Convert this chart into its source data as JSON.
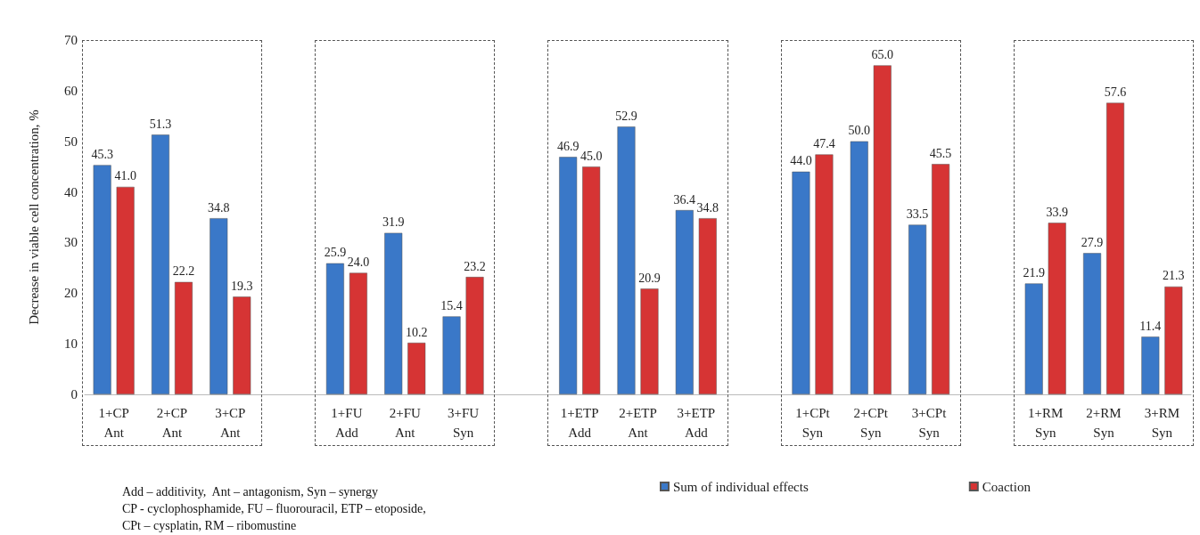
{
  "chart_data": {
    "type": "bar",
    "ylabel": "Decrease in viable cell concentration, %",
    "categories": [
      "1+CP\nAnt",
      "2+CP\nAnt",
      "3+CP\nAnt",
      null,
      "1+FU\nAdd",
      "2+FU\nAnt",
      "3+FU\nSyn",
      null,
      "1+ETP\nAdd",
      "2+ETP\nAnt",
      "3+ETP\nAdd",
      null,
      "1+CPt\nSyn",
      "2+CPt\nSyn",
      "3+CPt\nSyn",
      null,
      "1+RM\nSyn",
      "2+RM\nSyn",
      "3+RM\nSyn"
    ],
    "series": [
      {
        "name": "Sum of individual effects",
        "color": "#3a78c8",
        "values": [
          45.3,
          51.3,
          34.8,
          null,
          25.9,
          31.9,
          15.4,
          null,
          46.9,
          52.9,
          36.4,
          null,
          44.0,
          50.0,
          33.5,
          null,
          21.9,
          27.9,
          11.4
        ],
        "value_labels": [
          "45.3",
          "51.3",
          "34.8",
          null,
          "25.9",
          "31.9",
          "15.4",
          null,
          "46.9",
          "52.9",
          "36.4",
          null,
          "44.0",
          "50.0",
          "33.5",
          null,
          "21.9",
          "27.9",
          "11.4"
        ]
      },
      {
        "name": "Coaction",
        "color": "#d63434",
        "values": [
          41.0,
          22.2,
          19.3,
          null,
          24.0,
          10.2,
          23.2,
          null,
          45.0,
          20.9,
          34.8,
          null,
          47.4,
          65.0,
          45.5,
          null,
          33.9,
          57.6,
          21.3
        ],
        "value_labels": [
          "41.0",
          "22.2",
          "19.3",
          null,
          "24.0",
          "10.2",
          "23.2",
          null,
          "45.0",
          "20.9",
          "34.8",
          null,
          "47.4",
          "65.0",
          "45.5",
          null,
          "33.9",
          "57.6",
          "21.3"
        ]
      }
    ],
    "ylim": [
      0,
      70
    ],
    "yticks": [
      0,
      10,
      20,
      30,
      40,
      50,
      60,
      70
    ],
    "grid": false,
    "legend": "bottom",
    "annotations": [
      "Add – additivity,  Ant – antagonism, Syn – synergy",
      "CP - cyclophosphamide, FU – fluorouracil, ETP – etoposide,",
      "CPt – cysplatin, RM – ribomustine"
    ]
  }
}
